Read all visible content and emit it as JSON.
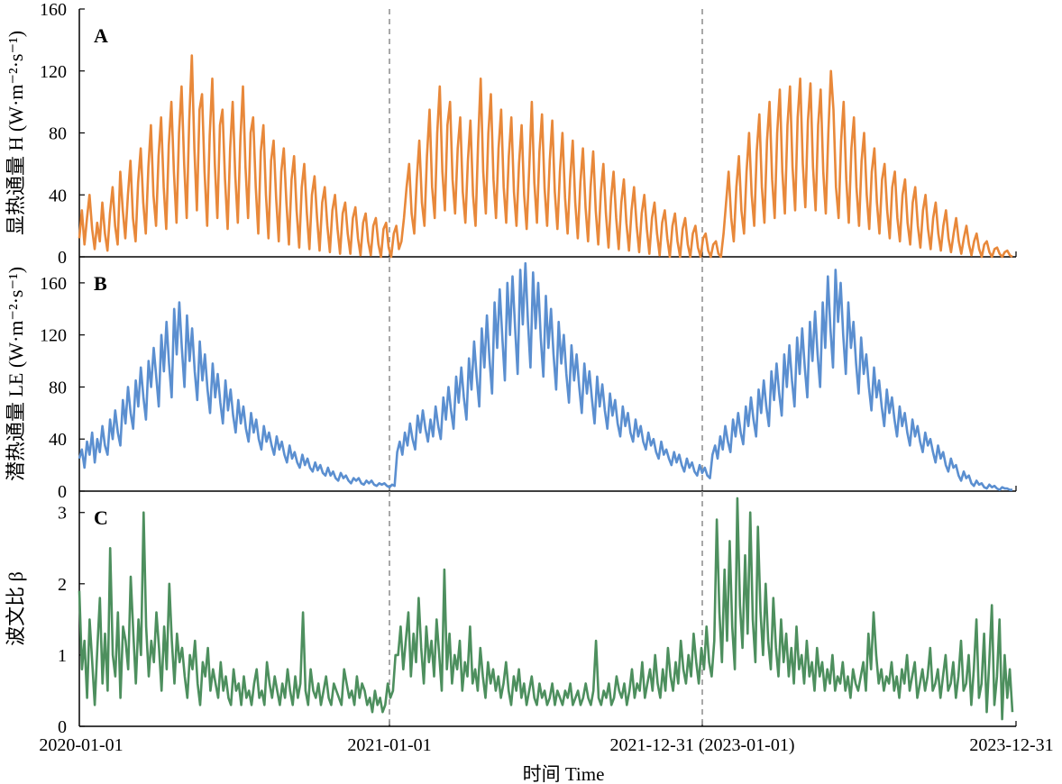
{
  "x_axis": {
    "ticks": [
      "2020-01-01",
      "2021-01-01",
      "2021-12-31 (2023-01-01)",
      "2023-12-31"
    ],
    "title": "时间 Time"
  },
  "colors": {
    "H": "#E8883A",
    "LE": "#5B8FD0",
    "beta": "#4D8F5E",
    "divider": "#8c8c8c"
  },
  "chart_data": [
    {
      "type": "line",
      "panel": "A",
      "ylabel": "显热通量 H (W·m⁻²·s⁻¹)",
      "ylim": [
        0,
        160
      ],
      "yticks": [
        0,
        40,
        80,
        120,
        160
      ],
      "dividers": [
        "2021-01-01",
        "2021-12-31 (2023-01-01)"
      ],
      "series": [
        {
          "values": [
            12,
            30,
            8,
            25,
            40,
            18,
            5,
            22,
            10,
            35,
            15,
            4,
            28,
            45,
            20,
            8,
            55,
            30,
            12,
            40,
            62,
            25,
            10,
            48,
            70,
            35,
            15,
            58,
            85,
            40,
            20,
            65,
            90,
            45,
            18,
            72,
            100,
            55,
            22,
            80,
            110,
            60,
            25,
            88,
            130,
            70,
            30,
            95,
            105,
            55,
            20,
            78,
            115,
            60,
            25,
            85,
            95,
            50,
            18,
            70,
            100,
            52,
            22,
            75,
            110,
            58,
            25,
            80,
            90,
            45,
            15,
            68,
            85,
            40,
            12,
            62,
            75,
            38,
            10,
            55,
            70,
            35,
            8,
            50,
            65,
            30,
            6,
            45,
            60,
            28,
            5,
            40,
            52,
            25,
            4,
            35,
            45,
            20,
            3,
            30,
            40,
            18,
            2,
            28,
            35,
            15,
            2,
            25,
            32,
            12,
            1,
            22,
            28,
            10,
            1,
            20,
            25,
            8,
            0,
            18,
            22,
            6,
            0,
            15,
            20,
            5,
            10,
            25,
            45,
            60,
            28,
            15,
            50,
            75,
            35,
            20,
            65,
            95,
            45,
            25,
            80,
            110,
            55,
            30,
            85,
            100,
            50,
            28,
            70,
            90,
            42,
            22,
            62,
            88,
            40,
            20,
            75,
            115,
            55,
            28,
            80,
            105,
            50,
            25,
            70,
            95,
            45,
            22,
            65,
            90,
            42,
            20,
            60,
            85,
            40,
            18,
            58,
            100,
            48,
            22,
            68,
            92,
            44,
            20,
            62,
            88,
            42,
            18,
            55,
            80,
            38,
            15,
            50,
            75,
            35,
            12,
            48,
            70,
            32,
            10,
            45,
            68,
            30,
            8,
            42,
            60,
            28,
            6,
            38,
            55,
            25,
            5,
            35,
            50,
            22,
            4,
            30,
            45,
            20,
            3,
            28,
            40,
            18,
            2,
            25,
            35,
            15,
            1,
            22,
            30,
            12,
            0,
            20,
            28,
            10,
            0,
            18,
            25,
            8,
            0,
            15,
            20,
            6,
            0,
            12,
            15,
            4,
            0,
            8,
            10,
            2,
            0,
            15,
            35,
            55,
            25,
            10,
            45,
            65,
            30,
            15,
            55,
            80,
            40,
            20,
            68,
            92,
            45,
            22,
            75,
            100,
            50,
            25,
            80,
            108,
            55,
            28,
            85,
            110,
            58,
            30,
            90,
            115,
            60,
            32,
            88,
            112,
            58,
            30,
            85,
            108,
            55,
            28,
            80,
            120,
            95,
            45,
            25,
            75,
            100,
            50,
            22,
            70,
            90,
            45,
            20,
            62,
            80,
            40,
            18,
            55,
            70,
            35,
            15,
            50,
            60,
            30,
            12,
            45,
            55,
            25,
            10,
            40,
            50,
            22,
            8,
            35,
            45,
            20,
            6,
            30,
            40,
            18,
            5,
            25,
            35,
            15,
            4,
            20,
            30,
            12,
            3,
            15,
            25,
            10,
            2,
            12,
            20,
            8,
            1,
            10,
            15,
            5,
            0,
            8,
            10,
            3,
            0,
            5,
            6,
            2,
            0,
            3,
            4,
            1,
            0
          ]
        }
      ]
    },
    {
      "type": "line",
      "panel": "B",
      "ylabel": "潜热通量 LE (W·m⁻²·s⁻¹)",
      "ylim": [
        0,
        180
      ],
      "yticks": [
        0,
        40,
        80,
        120,
        160
      ],
      "dividers": [
        "2021-01-01",
        "2021-12-31 (2023-01-01)"
      ],
      "series": [
        {
          "values": [
            25,
            32,
            18,
            38,
            28,
            45,
            22,
            40,
            30,
            50,
            35,
            28,
            55,
            40,
            62,
            45,
            35,
            70,
            52,
            80,
            60,
            48,
            85,
            65,
            95,
            72,
            55,
            100,
            80,
            110,
            88,
            65,
            120,
            92,
            130,
            98,
            72,
            140,
            105,
            145,
            110,
            80,
            135,
            100,
            125,
            92,
            70,
            115,
            85,
            105,
            78,
            60,
            98,
            72,
            90,
            68,
            52,
            85,
            62,
            78,
            58,
            45,
            70,
            52,
            65,
            48,
            38,
            60,
            45,
            55,
            40,
            32,
            50,
            38,
            45,
            35,
            28,
            42,
            32,
            38,
            28,
            22,
            35,
            25,
            30,
            22,
            18,
            28,
            20,
            25,
            18,
            15,
            22,
            16,
            20,
            14,
            12,
            18,
            12,
            15,
            10,
            8,
            14,
            10,
            12,
            8,
            6,
            10,
            8,
            10,
            6,
            5,
            8,
            6,
            8,
            5,
            4,
            6,
            5,
            6,
            4,
            3,
            5,
            4,
            30,
            38,
            28,
            45,
            35,
            52,
            40,
            32,
            58,
            45,
            62,
            48,
            38,
            55,
            42,
            65,
            50,
            40,
            72,
            55,
            80,
            62,
            48,
            88,
            68,
            95,
            72,
            55,
            102,
            78,
            115,
            88,
            65,
            125,
            95,
            135,
            102,
            75,
            145,
            110,
            155,
            118,
            85,
            160,
            120,
            165,
            125,
            90,
            170,
            128,
            175,
            130,
            95,
            168,
            125,
            160,
            118,
            88,
            150,
            110,
            140,
            105,
            78,
            130,
            98,
            120,
            90,
            68,
            112,
            85,
            105,
            80,
            60,
            98,
            75,
            92,
            70,
            52,
            88,
            65,
            82,
            62,
            48,
            75,
            58,
            70,
            52,
            42,
            65,
            50,
            60,
            45,
            38,
            55,
            42,
            50,
            38,
            32,
            45,
            35,
            40,
            30,
            25,
            38,
            28,
            32,
            25,
            20,
            30,
            22,
            28,
            20,
            15,
            25,
            18,
            22,
            15,
            12,
            20,
            14,
            18,
            12,
            10,
            28,
            35,
            25,
            42,
            32,
            50,
            38,
            30,
            55,
            42,
            60,
            45,
            36,
            65,
            50,
            72,
            55,
            42,
            78,
            60,
            85,
            65,
            50,
            92,
            70,
            98,
            75,
            58,
            105,
            80,
            112,
            85,
            65,
            118,
            90,
            125,
            95,
            72,
            130,
            100,
            138,
            105,
            80,
            145,
            110,
            165,
            125,
            95,
            170,
            130,
            160,
            120,
            90,
            145,
            110,
            130,
            98,
            75,
            118,
            90,
            105,
            80,
            62,
            95,
            72,
            85,
            65,
            50,
            78,
            60,
            72,
            55,
            42,
            65,
            50,
            60,
            45,
            35,
            55,
            42,
            50,
            38,
            30,
            45,
            35,
            40,
            30,
            22,
            35,
            25,
            30,
            20,
            15,
            25,
            18,
            20,
            12,
            8,
            15,
            10,
            12,
            6,
            4,
            8,
            5,
            6,
            3,
            2,
            5,
            3,
            4,
            2,
            1,
            3,
            2,
            2,
            1,
            1
          ]
        }
      ]
    },
    {
      "type": "line",
      "panel": "C",
      "ylabel": "波文比 β",
      "ylim": [
        0,
        3.3
      ],
      "yticks": [
        0,
        1,
        2,
        3
      ],
      "dividers": [
        "2021-01-01",
        "2021-12-31 (2023-01-01)"
      ],
      "series": [
        {
          "values": [
            1.9,
            0.8,
            1.2,
            0.4,
            1.5,
            0.9,
            0.3,
            1.1,
            1.8,
            0.6,
            1.3,
            0.5,
            2.5,
            1.0,
            0.7,
            1.6,
            0.4,
            1.4,
            1.2,
            0.8,
            2.1,
            1.3,
            0.6,
            1.5,
            1.0,
            3.0,
            1.4,
            0.7,
            1.2,
            0.9,
            1.6,
            1.1,
            0.5,
            1.4,
            0.8,
            2.0,
            1.2,
            0.6,
            1.3,
            0.9,
            1.1,
            0.7,
            0.4,
            1.0,
            0.8,
            1.2,
            0.6,
            0.3,
            0.9,
            0.7,
            1.1,
            0.5,
            0.8,
            0.6,
            0.4,
            0.9,
            0.5,
            0.7,
            0.4,
            0.3,
            0.8,
            0.5,
            0.6,
            0.3,
            0.7,
            0.4,
            0.5,
            0.3,
            0.6,
            0.8,
            0.4,
            0.5,
            0.3,
            0.9,
            0.6,
            0.4,
            0.7,
            0.5,
            0.3,
            0.6,
            0.4,
            0.8,
            0.5,
            0.3,
            0.7,
            0.4,
            0.6,
            1.6,
            0.5,
            0.3,
            0.8,
            0.5,
            0.4,
            0.6,
            0.3,
            0.5,
            0.7,
            0.4,
            0.3,
            0.6,
            0.5,
            0.4,
            0.3,
            0.8,
            0.6,
            0.4,
            0.5,
            0.3,
            0.7,
            0.4,
            0.6,
            0.5,
            0.3,
            0.4,
            0.2,
            0.5,
            0.3,
            0.4,
            0.2,
            0.3,
            0.6,
            0.4,
            0.5,
            1.0,
            1.0,
            1.4,
            0.8,
            1.2,
            1.6,
            0.7,
            1.3,
            0.9,
            1.8,
            1.1,
            0.6,
            1.4,
            0.9,
            1.2,
            0.7,
            1.5,
            1.0,
            0.5,
            2.2,
            0.8,
            1.3,
            0.6,
            1.0,
            0.8,
            1.2,
            0.5,
            0.9,
            0.7,
            1.4,
            0.6,
            0.8,
            0.5,
            1.1,
            0.7,
            0.4,
            0.9,
            0.6,
            0.8,
            0.5,
            0.7,
            0.4,
            0.6,
            0.9,
            0.5,
            0.3,
            0.7,
            0.5,
            0.8,
            0.4,
            0.6,
            0.3,
            0.5,
            0.7,
            0.4,
            0.3,
            0.6,
            0.4,
            0.5,
            0.3,
            0.4,
            0.6,
            0.3,
            0.5,
            0.4,
            0.3,
            0.5,
            0.4,
            0.6,
            0.3,
            0.4,
            0.5,
            0.3,
            0.4,
            0.6,
            0.4,
            0.3,
            0.5,
            1.2,
            0.4,
            0.3,
            0.5,
            0.4,
            0.6,
            0.3,
            0.4,
            0.7,
            0.5,
            0.4,
            0.6,
            0.3,
            0.5,
            0.8,
            0.4,
            0.6,
            0.5,
            0.9,
            0.4,
            0.6,
            0.8,
            0.5,
            1.0,
            0.6,
            0.4,
            0.8,
            0.5,
            1.1,
            0.7,
            0.5,
            0.9,
            0.6,
            1.2,
            0.8,
            0.6,
            1.0,
            0.7,
            1.3,
            0.9,
            0.6,
            1.1,
            0.8,
            1.4,
            0.9,
            0.7,
            1.2,
            2.9,
            1.6,
            0.9,
            2.2,
            1.2,
            2.6,
            1.4,
            0.8,
            3.2,
            1.7,
            1.1,
            2.4,
            1.3,
            3.0,
            1.5,
            0.9,
            2.8,
            1.6,
            1.0,
            2.0,
            1.2,
            0.8,
            1.8,
            1.1,
            0.7,
            1.5,
            0.9,
            1.3,
            0.7,
            1.1,
            0.6,
            1.4,
            0.8,
            1.0,
            0.6,
            1.2,
            0.7,
            0.9,
            0.5,
            1.1,
            0.7,
            0.9,
            0.5,
            0.8,
            0.6,
            1.0,
            0.5,
            0.7,
            0.6,
            0.9,
            0.5,
            0.7,
            0.4,
            0.8,
            0.6,
            0.5,
            0.7,
            0.9,
            0.5,
            1.3,
            0.8,
            1.6,
            1.0,
            0.6,
            0.8,
            0.5,
            0.7,
            0.6,
            0.9,
            0.5,
            0.7,
            0.4,
            0.8,
            0.6,
            1.0,
            0.5,
            0.7,
            0.9,
            0.4,
            0.6,
            0.8,
            0.5,
            0.7,
            1.1,
            0.5,
            0.6,
            0.8,
            0.4,
            0.7,
            1.0,
            0.5,
            0.6,
            0.9,
            0.4,
            0.7,
            1.2,
            0.5,
            0.6,
            1.0,
            0.3,
            0.8,
            1.5,
            0.4,
            0.6,
            1.3,
            0.2,
            0.9,
            1.7,
            0.3,
            0.7,
            1.5,
            0.1,
            1.0,
            0.4,
            0.8,
            0.2
          ]
        }
      ]
    }
  ]
}
